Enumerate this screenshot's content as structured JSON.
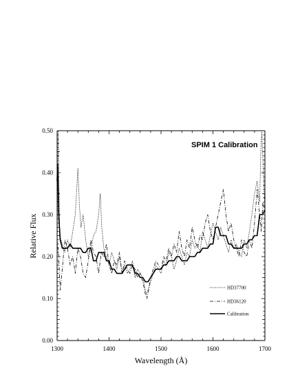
{
  "chart_data": {
    "type": "line",
    "title": "SPIM 1 Calibration",
    "xlabel": "Wavelength (Å)",
    "ylabel": "Relative Flux",
    "xlim": [
      1300,
      1700
    ],
    "ylim": [
      0.0,
      0.5
    ],
    "xticks": [
      1300,
      1400,
      1500,
      1600,
      1700
    ],
    "yticks": [
      "0.00",
      "0.10",
      "0.20",
      "0.30",
      "0.40",
      "0.50"
    ],
    "grid": false,
    "legend_position": "lower-right",
    "series": [
      {
        "name": "HD37700",
        "style": "dotted",
        "x": [
          1300,
          1302,
          1305,
          1310,
          1315,
          1320,
          1325,
          1330,
          1335,
          1340,
          1343,
          1346,
          1350,
          1355,
          1360,
          1365,
          1370,
          1375,
          1380,
          1383,
          1386,
          1390,
          1395,
          1400,
          1405,
          1410,
          1415,
          1420,
          1425,
          1430,
          1435,
          1440,
          1445,
          1450,
          1455,
          1460,
          1465,
          1470,
          1472,
          1475,
          1480,
          1485,
          1490,
          1495,
          1500,
          1505,
          1510,
          1515,
          1520,
          1525,
          1530,
          1535,
          1540,
          1545,
          1550,
          1555,
          1560,
          1565,
          1570,
          1575,
          1580,
          1585,
          1590,
          1595,
          1600,
          1605,
          1610,
          1615,
          1620,
          1625,
          1630,
          1635,
          1640,
          1645,
          1650,
          1655,
          1660,
          1665,
          1670,
          1675,
          1680,
          1685,
          1690,
          1692,
          1694,
          1697,
          1700
        ],
        "values": [
          0.22,
          0.5,
          0.25,
          0.23,
          0.21,
          0.24,
          0.22,
          0.26,
          0.3,
          0.41,
          0.32,
          0.27,
          0.3,
          0.24,
          0.2,
          0.22,
          0.25,
          0.26,
          0.3,
          0.35,
          0.27,
          0.22,
          0.2,
          0.18,
          0.21,
          0.19,
          0.17,
          0.2,
          0.16,
          0.18,
          0.16,
          0.17,
          0.19,
          0.15,
          0.17,
          0.16,
          0.15,
          0.12,
          0.11,
          0.12,
          0.14,
          0.16,
          0.18,
          0.17,
          0.16,
          0.19,
          0.18,
          0.21,
          0.2,
          0.17,
          0.19,
          0.22,
          0.2,
          0.18,
          0.21,
          0.2,
          0.24,
          0.22,
          0.23,
          0.21,
          0.26,
          0.24,
          0.22,
          0.25,
          0.28,
          0.26,
          0.24,
          0.27,
          0.25,
          0.23,
          0.21,
          0.24,
          0.22,
          0.23,
          0.21,
          0.2,
          0.24,
          0.22,
          0.26,
          0.3,
          0.35,
          0.38,
          0.33,
          0.45,
          0.5,
          0.4,
          0.31
        ]
      },
      {
        "name": "HD36120",
        "style": "dash-dot",
        "x": [
          1300,
          1303,
          1306,
          1310,
          1315,
          1320,
          1325,
          1330,
          1335,
          1340,
          1345,
          1350,
          1355,
          1360,
          1365,
          1370,
          1375,
          1380,
          1385,
          1390,
          1395,
          1400,
          1405,
          1410,
          1415,
          1420,
          1425,
          1430,
          1435,
          1440,
          1445,
          1450,
          1455,
          1460,
          1465,
          1470,
          1473,
          1476,
          1480,
          1485,
          1490,
          1495,
          1500,
          1505,
          1510,
          1515,
          1520,
          1525,
          1530,
          1535,
          1540,
          1545,
          1550,
          1555,
          1560,
          1565,
          1570,
          1575,
          1580,
          1585,
          1590,
          1595,
          1600,
          1605,
          1610,
          1615,
          1620,
          1625,
          1630,
          1635,
          1640,
          1645,
          1650,
          1655,
          1660,
          1665,
          1670,
          1675,
          1680,
          1685,
          1690,
          1693,
          1696,
          1700
        ],
        "values": [
          0.24,
          0.2,
          0.12,
          0.17,
          0.24,
          0.22,
          0.18,
          0.2,
          0.16,
          0.22,
          0.2,
          0.16,
          0.15,
          0.19,
          0.24,
          0.21,
          0.2,
          0.16,
          0.21,
          0.2,
          0.23,
          0.18,
          0.16,
          0.19,
          0.18,
          0.21,
          0.16,
          0.19,
          0.17,
          0.16,
          0.18,
          0.17,
          0.15,
          0.16,
          0.14,
          0.11,
          0.1,
          0.12,
          0.15,
          0.17,
          0.19,
          0.18,
          0.17,
          0.2,
          0.19,
          0.22,
          0.2,
          0.23,
          0.21,
          0.26,
          0.22,
          0.2,
          0.24,
          0.22,
          0.27,
          0.24,
          0.22,
          0.25,
          0.24,
          0.28,
          0.3,
          0.26,
          0.24,
          0.27,
          0.3,
          0.33,
          0.36,
          0.3,
          0.26,
          0.28,
          0.24,
          0.22,
          0.2,
          0.24,
          0.21,
          0.2,
          0.24,
          0.22,
          0.28,
          0.36,
          0.3,
          0.26,
          0.33,
          0.31
        ]
      },
      {
        "name": "Calibration",
        "style": "solid",
        "x": [
          1300,
          1301,
          1303,
          1306,
          1310,
          1315,
          1320,
          1325,
          1330,
          1335,
          1340,
          1345,
          1350,
          1355,
          1360,
          1365,
          1370,
          1375,
          1380,
          1385,
          1390,
          1395,
          1400,
          1405,
          1410,
          1415,
          1420,
          1425,
          1430,
          1435,
          1440,
          1445,
          1450,
          1455,
          1460,
          1465,
          1470,
          1475,
          1480,
          1485,
          1490,
          1495,
          1500,
          1505,
          1510,
          1515,
          1520,
          1525,
          1530,
          1535,
          1540,
          1545,
          1550,
          1555,
          1560,
          1565,
          1570,
          1575,
          1580,
          1585,
          1590,
          1595,
          1600,
          1605,
          1610,
          1615,
          1620,
          1625,
          1630,
          1635,
          1640,
          1645,
          1650,
          1655,
          1660,
          1665,
          1670,
          1675,
          1680,
          1685,
          1690,
          1695,
          1700
        ],
        "values": [
          0.38,
          0.42,
          0.3,
          0.24,
          0.22,
          0.22,
          0.22,
          0.23,
          0.22,
          0.22,
          0.22,
          0.22,
          0.21,
          0.21,
          0.22,
          0.22,
          0.19,
          0.19,
          0.21,
          0.21,
          0.21,
          0.19,
          0.19,
          0.17,
          0.17,
          0.16,
          0.16,
          0.16,
          0.17,
          0.18,
          0.18,
          0.18,
          0.16,
          0.16,
          0.15,
          0.15,
          0.14,
          0.14,
          0.15,
          0.16,
          0.17,
          0.17,
          0.17,
          0.18,
          0.18,
          0.19,
          0.19,
          0.19,
          0.2,
          0.2,
          0.19,
          0.19,
          0.19,
          0.2,
          0.2,
          0.2,
          0.21,
          0.21,
          0.22,
          0.22,
          0.22,
          0.23,
          0.23,
          0.27,
          0.27,
          0.25,
          0.25,
          0.25,
          0.23,
          0.23,
          0.22,
          0.22,
          0.22,
          0.22,
          0.23,
          0.23,
          0.24,
          0.24,
          0.25,
          0.25,
          0.3,
          0.3,
          0.31
        ]
      }
    ]
  }
}
